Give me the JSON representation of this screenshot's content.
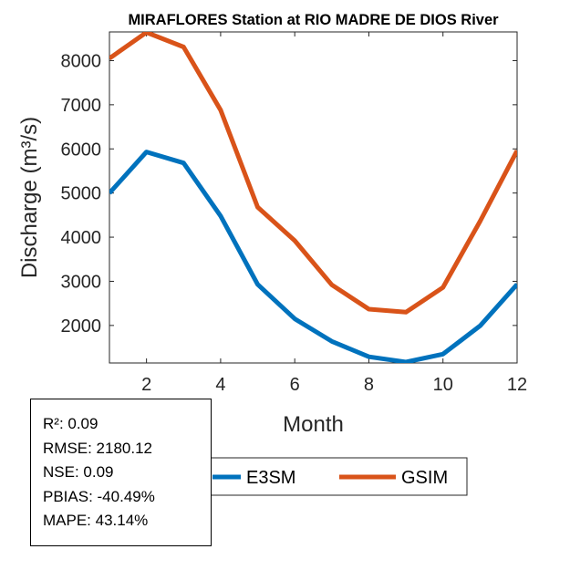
{
  "chart_data": {
    "type": "line",
    "title": "MIRAFLORES  Station at  RIO MADRE DE DIOS  River",
    "xlabel": "Month",
    "ylabel": "Discharge (m³/s)",
    "xlim": [
      1,
      12
    ],
    "ylim": [
      1150,
      8650
    ],
    "xticks": [
      2,
      4,
      6,
      8,
      10,
      12
    ],
    "yticks": [
      2000,
      3000,
      4000,
      5000,
      6000,
      7000,
      8000
    ],
    "grid": false,
    "legend_position": "bottom",
    "x": [
      1,
      2,
      3,
      4,
      5,
      6,
      7,
      8,
      9,
      10,
      11,
      12
    ],
    "series": [
      {
        "name": "E3SM",
        "color": "#0072BD",
        "values": [
          5000,
          5930,
          5680,
          4480,
          2930,
          2150,
          1640,
          1290,
          1170,
          1350,
          1990,
          2930
        ]
      },
      {
        "name": "GSIM",
        "color": "#D95319",
        "values": [
          8050,
          8640,
          8310,
          6880,
          4680,
          3920,
          2920,
          2370,
          2300,
          2860,
          4360,
          5960
        ]
      }
    ]
  },
  "stats": {
    "r2": "R²: 0.09",
    "rmse": "RMSE: 2180.12",
    "nse": "NSE: 0.09",
    "pbias": "PBIAS: -40.49%",
    "mape": "MAPE: 43.14%"
  }
}
